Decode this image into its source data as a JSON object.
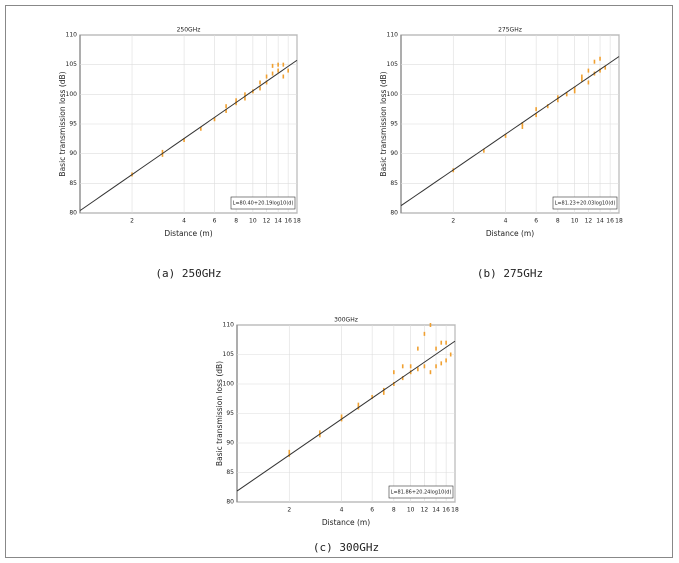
{
  "chart_data": [
    {
      "type": "scatter",
      "title": "250GHz",
      "caption": "(a) 250GHz",
      "xlabel": "Distance (m)",
      "ylabel": "Basic transmission loss (dB)",
      "xlog": true,
      "xlim": [
        1,
        18
      ],
      "xticks": [
        2,
        4,
        6,
        8,
        10,
        12,
        14,
        16,
        18
      ],
      "ylim": [
        80,
        110
      ],
      "yticks": [
        80,
        85,
        90,
        95,
        100,
        105,
        110
      ],
      "grid": true,
      "color": "#f0a030",
      "x": [
        2,
        3,
        3,
        4,
        5,
        6,
        7,
        7,
        8,
        8,
        9,
        9,
        10,
        11,
        11,
        12,
        12,
        13,
        13,
        14,
        14,
        15,
        15,
        16
      ],
      "y": [
        86.5,
        89.8,
        90.3,
        92.3,
        94.2,
        95.8,
        97.2,
        98,
        98.5,
        99,
        99.3,
        100,
        100.5,
        101,
        102,
        102,
        103,
        103.5,
        104.8,
        104,
        105,
        103,
        105,
        104
      ],
      "fit": {
        "intercept": 80.4,
        "slope": 20.19,
        "color": "#333333",
        "label": "L=80.40+20.19log10(d)"
      }
    },
    {
      "type": "scatter",
      "title": "275GHz",
      "caption": "(b) 275GHz",
      "xlabel": "Distance (m)",
      "ylabel": "Basic transmission loss (dB)",
      "xlog": true,
      "xlim": [
        1,
        18
      ],
      "xticks": [
        2,
        4,
        6,
        8,
        10,
        12,
        14,
        16,
        18
      ],
      "ylim": [
        80,
        110
      ],
      "yticks": [
        80,
        85,
        90,
        95,
        100,
        105,
        110
      ],
      "grid": true,
      "color": "#f0a030",
      "x": [
        2,
        3,
        4,
        5,
        5,
        6,
        6,
        7,
        8,
        8,
        9,
        10,
        10,
        11,
        11,
        12,
        12,
        13,
        13,
        14,
        14,
        15
      ],
      "y": [
        87.2,
        90.5,
        93,
        94.5,
        95,
        96.5,
        97.5,
        98,
        99,
        99.5,
        100,
        100.5,
        101,
        102.5,
        103,
        102,
        104,
        105.5,
        103.5,
        106,
        104,
        104.5
      ],
      "fit": {
        "intercept": 81.23,
        "slope": 20.03,
        "color": "#333333",
        "label": "L=81.23+20.03log10(d)"
      }
    },
    {
      "type": "scatter",
      "title": "300GHz",
      "caption": "(c) 300GHz",
      "xlabel": "Distance (m)",
      "ylabel": "Basic transmission loss (dB)",
      "xlog": true,
      "xlim": [
        1,
        18
      ],
      "xticks": [
        2,
        4,
        6,
        8,
        10,
        12,
        14,
        16,
        18
      ],
      "ylim": [
        80,
        110
      ],
      "yticks": [
        80,
        85,
        90,
        95,
        100,
        105,
        110
      ],
      "grid": true,
      "color": "#f0a030",
      "x": [
        2,
        2,
        3,
        3,
        4,
        4,
        5,
        5,
        6,
        7,
        7,
        8,
        8,
        9,
        9,
        10,
        10,
        11,
        11,
        12,
        12,
        13,
        13,
        14,
        14,
        15,
        15,
        16,
        16,
        17
      ],
      "y": [
        88,
        88.5,
        91.3,
        91.8,
        94,
        94.5,
        96,
        96.5,
        97.8,
        99,
        98.5,
        100,
        102,
        101,
        103,
        102,
        103,
        102.5,
        106,
        103,
        108.5,
        102,
        110,
        106,
        103,
        107,
        103.5,
        104,
        107,
        105
      ],
      "fit": {
        "intercept": 81.86,
        "slope": 20.24,
        "color": "#333333",
        "label": "L=81.86+20.24log10(d)"
      }
    }
  ]
}
